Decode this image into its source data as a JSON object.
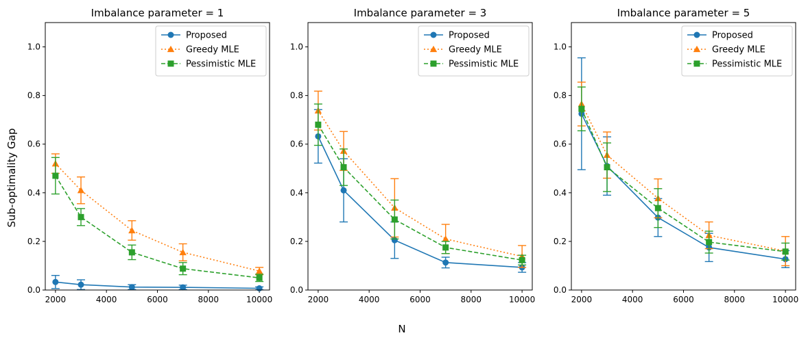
{
  "figure": {
    "ylabel": "Sub-optimality Gap",
    "xlabel": "N"
  },
  "chart_data": [
    {
      "type": "line",
      "title": "Imbalance parameter = 1",
      "x": [
        2000,
        3000,
        5000,
        7000,
        10000
      ],
      "xlim": [
        1600,
        10400
      ],
      "ylim": [
        0,
        1.1
      ],
      "xticks": [
        2000,
        4000,
        6000,
        8000,
        10000
      ],
      "yticks": [
        0.0,
        0.2,
        0.4,
        0.6,
        0.8,
        1.0
      ],
      "legend_position": "top-right",
      "series": [
        {
          "name": "Proposed",
          "color": "#1f77b4",
          "marker": "circle",
          "linestyle": "solid",
          "values": [
            0.033,
            0.022,
            0.012,
            0.011,
            0.007
          ],
          "error": [
            0.027,
            0.02,
            0.01,
            0.009,
            0.006
          ]
        },
        {
          "name": "Greedy MLE",
          "color": "#ff7f0e",
          "marker": "triangle",
          "linestyle": "dotted",
          "values": [
            0.52,
            0.41,
            0.245,
            0.155,
            0.078
          ],
          "error": [
            0.04,
            0.055,
            0.04,
            0.035,
            0.015
          ]
        },
        {
          "name": "Pessimistic MLE",
          "color": "#2ca02c",
          "marker": "square",
          "linestyle": "dashed",
          "values": [
            0.47,
            0.3,
            0.155,
            0.088,
            0.05
          ],
          "error": [
            0.075,
            0.035,
            0.03,
            0.025,
            0.015
          ]
        }
      ]
    },
    {
      "type": "line",
      "title": "Imbalance parameter = 3",
      "x": [
        2000,
        3000,
        5000,
        7000,
        10000
      ],
      "xlim": [
        1600,
        10400
      ],
      "ylim": [
        0,
        1.1
      ],
      "xticks": [
        2000,
        4000,
        6000,
        8000,
        10000
      ],
      "yticks": [
        0.0,
        0.2,
        0.4,
        0.6,
        0.8,
        1.0
      ],
      "legend_position": "top-right",
      "series": [
        {
          "name": "Proposed",
          "color": "#1f77b4",
          "marker": "circle",
          "linestyle": "solid",
          "values": [
            0.632,
            0.41,
            0.205,
            0.113,
            0.093
          ],
          "error": [
            0.11,
            0.13,
            0.075,
            0.022,
            0.02
          ]
        },
        {
          "name": "Greedy MLE",
          "color": "#ff7f0e",
          "marker": "triangle",
          "linestyle": "dotted",
          "values": [
            0.738,
            0.572,
            0.338,
            0.21,
            0.138
          ],
          "error": [
            0.08,
            0.08,
            0.12,
            0.06,
            0.045
          ]
        },
        {
          "name": "Pessimistic MLE",
          "color": "#2ca02c",
          "marker": "square",
          "linestyle": "dashed",
          "values": [
            0.68,
            0.505,
            0.29,
            0.175,
            0.123
          ],
          "error": [
            0.085,
            0.075,
            0.08,
            0.025,
            0.02
          ]
        }
      ]
    },
    {
      "type": "line",
      "title": "Imbalance parameter = 5",
      "x": [
        2000,
        3000,
        5000,
        7000,
        10000
      ],
      "xlim": [
        1600,
        10400
      ],
      "ylim": [
        0,
        1.1
      ],
      "xticks": [
        2000,
        4000,
        6000,
        8000,
        10000
      ],
      "yticks": [
        0.0,
        0.2,
        0.4,
        0.6,
        0.8,
        1.0
      ],
      "legend_position": "top-right",
      "series": [
        {
          "name": "Proposed",
          "color": "#1f77b4",
          "marker": "circle",
          "linestyle": "solid",
          "values": [
            0.725,
            0.51,
            0.298,
            0.175,
            0.127
          ],
          "error": [
            0.23,
            0.12,
            0.078,
            0.058,
            0.035
          ]
        },
        {
          "name": "Greedy MLE",
          "color": "#ff7f0e",
          "marker": "triangle",
          "linestyle": "dotted",
          "values": [
            0.765,
            0.555,
            0.377,
            0.225,
            0.16
          ],
          "error": [
            0.09,
            0.095,
            0.08,
            0.055,
            0.06
          ]
        },
        {
          "name": "Pessimistic MLE",
          "color": "#2ca02c",
          "marker": "square",
          "linestyle": "dashed",
          "values": [
            0.745,
            0.505,
            0.337,
            0.197,
            0.158
          ],
          "error": [
            0.09,
            0.1,
            0.08,
            0.045,
            0.035
          ]
        }
      ]
    }
  ]
}
